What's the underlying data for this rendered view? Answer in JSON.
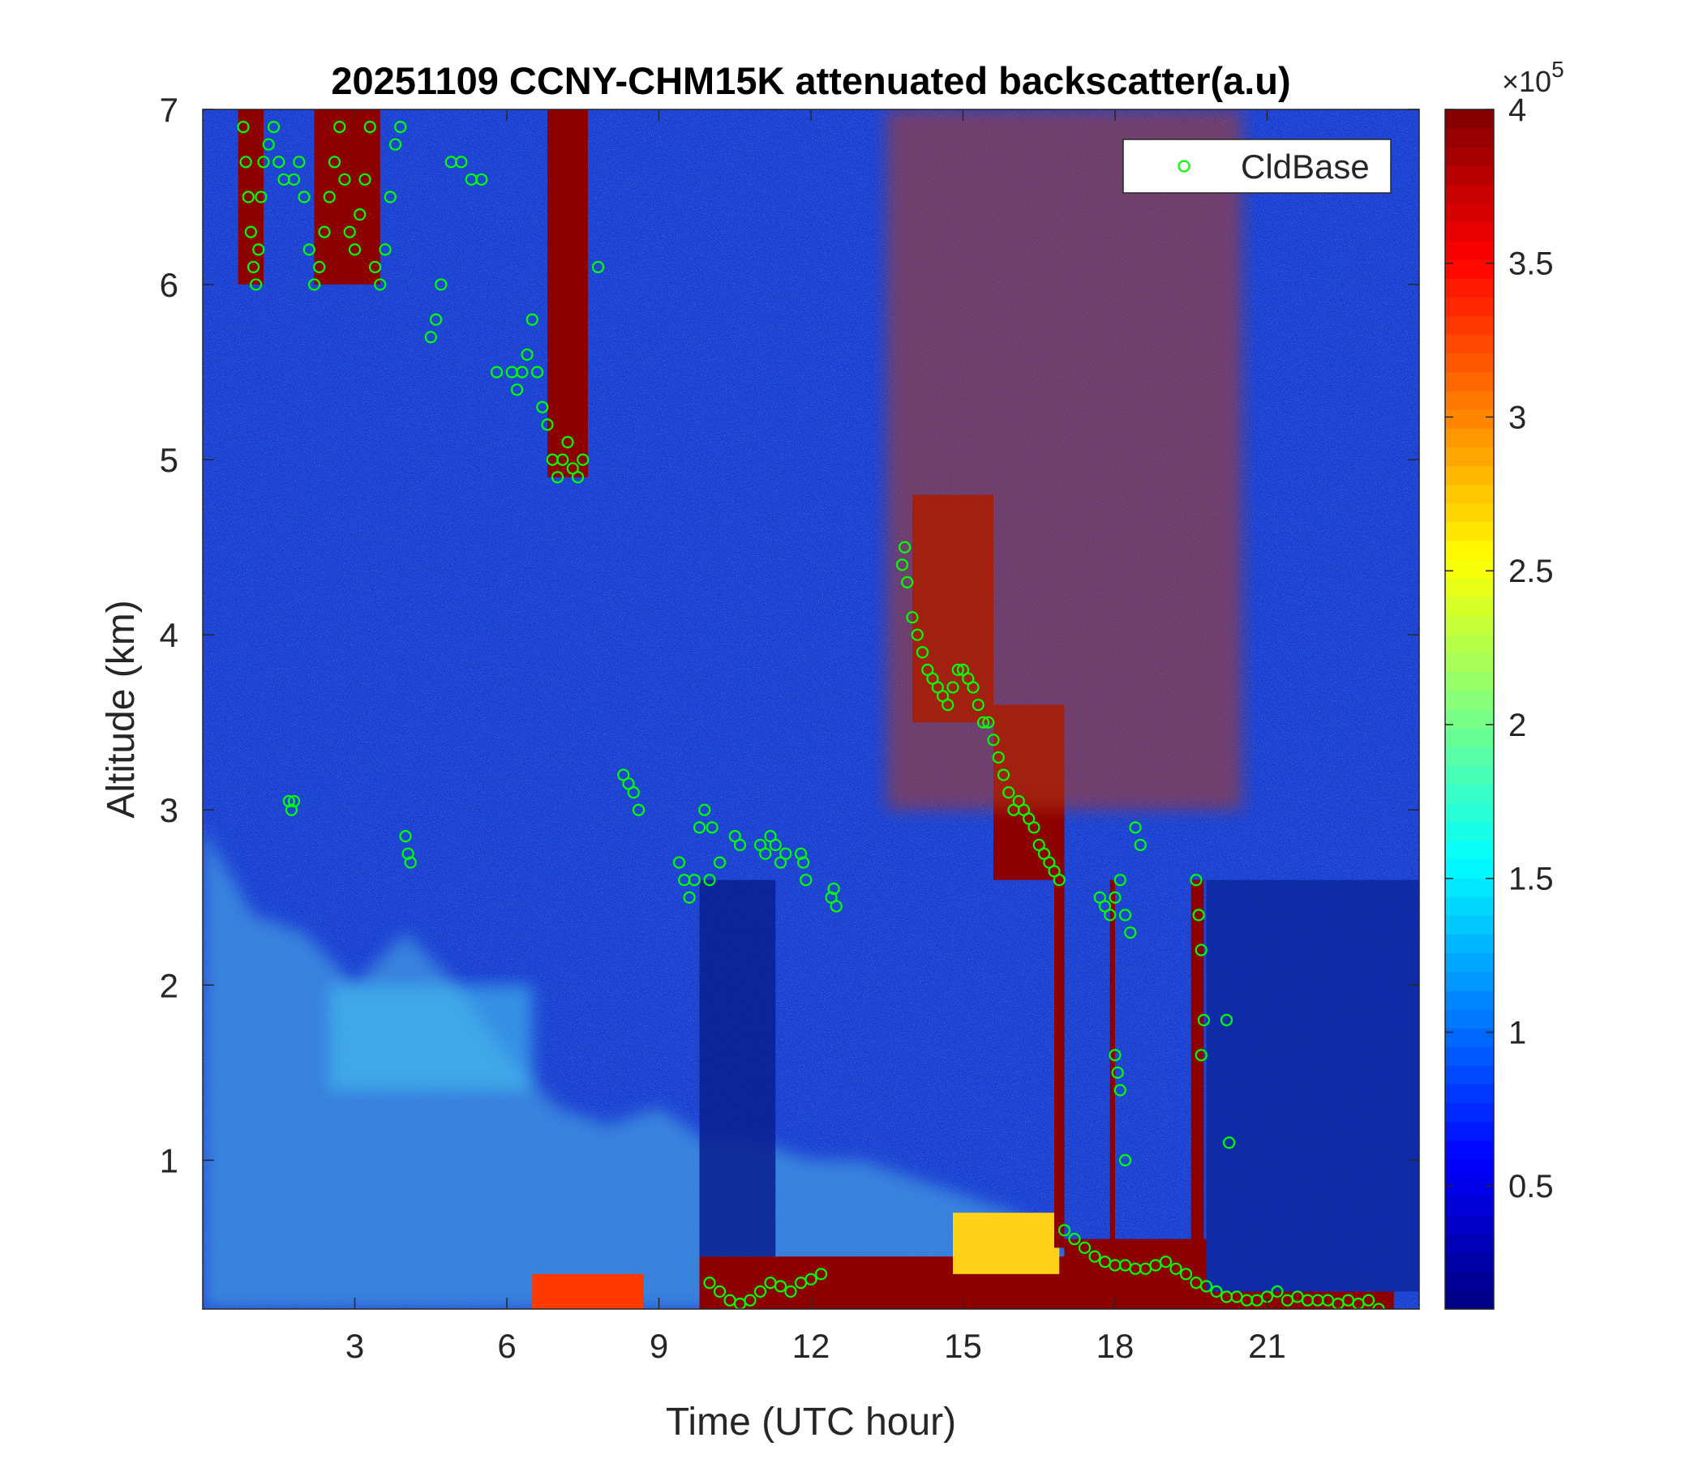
{
  "chart_data": {
    "type": "heatmap",
    "title": "20251109 CCNY-CHM15K attenuated backscatter(a.u)",
    "xlabel": "Time (UTC hour)",
    "ylabel": "Altitude (km)",
    "xlim": [
      0,
      24
    ],
    "ylim": [
      0.15,
      7
    ],
    "x_ticks": [
      3,
      6,
      9,
      12,
      15,
      18,
      21
    ],
    "y_ticks": [
      1,
      2,
      3,
      4,
      5,
      6,
      7
    ],
    "grid": false,
    "colormap": "jet",
    "colorbar": {
      "range": [
        0.1,
        4
      ],
      "ticks": [
        0.5,
        1,
        1.5,
        2,
        2.5,
        3,
        3.5,
        4
      ],
      "exponent_label": "×10",
      "exponent_power": "5"
    },
    "legend": {
      "position": "top-right",
      "entries": [
        "CldBase"
      ],
      "marker": "circle",
      "color": "#00ff00"
    },
    "features": [
      {
        "kind": "boundary_layer",
        "color": "#3d8de0",
        "top_km": [
          [
            0,
            2.9
          ],
          [
            1,
            2.4
          ],
          [
            2,
            2.3
          ],
          [
            3,
            2.0
          ],
          [
            4,
            2.3
          ],
          [
            5,
            2.0
          ],
          [
            6,
            1.6
          ],
          [
            7,
            1.3
          ],
          [
            8,
            1.2
          ],
          [
            9,
            1.3
          ],
          [
            10,
            1.1
          ],
          [
            11,
            1.1
          ],
          [
            12,
            1.0
          ],
          [
            13,
            1.0
          ],
          [
            14,
            0.9
          ],
          [
            15,
            0.8
          ],
          [
            16,
            0.7
          ],
          [
            17,
            0.5
          ],
          [
            17.2,
            0.0
          ]
        ]
      },
      {
        "kind": "aerosol_plume",
        "color": "#45c2f0",
        "t": [
          2.5,
          6.5
        ],
        "z": [
          1.4,
          2.0
        ]
      },
      {
        "kind": "surface_layer",
        "color": "#ff3a00",
        "t": [
          6.5,
          8.7
        ],
        "z": [
          0.15,
          0.35
        ]
      },
      {
        "kind": "surface_layer",
        "color": "#8c0000",
        "t": [
          9.8,
          17.0
        ],
        "z": [
          0.15,
          0.45
        ]
      },
      {
        "kind": "surface_layer",
        "color": "#ffd21a",
        "t": [
          14.8,
          16.9
        ],
        "z": [
          0.35,
          0.7
        ]
      },
      {
        "kind": "surface_layer",
        "color": "#8c0000",
        "t": [
          17.0,
          19.8
        ],
        "z": [
          0.15,
          0.55
        ]
      },
      {
        "kind": "surface_layer",
        "color": "#8c0000",
        "t": [
          19.8,
          23.5
        ],
        "z": [
          0.15,
          0.25
        ]
      },
      {
        "kind": "cloud",
        "color": "#8c0000",
        "t": [
          0.7,
          1.2
        ],
        "z": [
          6.0,
          7.0
        ]
      },
      {
        "kind": "cloud",
        "color": "#8c0000",
        "t": [
          2.2,
          3.5
        ],
        "z": [
          6.0,
          7.0
        ]
      },
      {
        "kind": "cloud",
        "color": "#8c0000",
        "t": [
          6.8,
          7.6
        ],
        "z": [
          4.9,
          7.8
        ]
      },
      {
        "kind": "cloud",
        "color": "#8c0000",
        "t": [
          14.0,
          15.6
        ],
        "z": [
          3.5,
          4.8
        ]
      },
      {
        "kind": "cloud",
        "color": "#8c0000",
        "t": [
          15.6,
          17.0
        ],
        "z": [
          2.6,
          3.6
        ]
      },
      {
        "kind": "cloud",
        "color": "#8c0000",
        "t": [
          16.8,
          17.0
        ],
        "z": [
          0.5,
          2.7
        ]
      },
      {
        "kind": "cloud",
        "color": "#8c0000",
        "t": [
          17.9,
          18.0
        ],
        "z": [
          0.5,
          2.6
        ]
      },
      {
        "kind": "cloud",
        "color": "#8c0000",
        "t": [
          19.5,
          19.75
        ],
        "z": [
          0.3,
          2.6
        ]
      },
      {
        "kind": "noisy_upper",
        "color": "#b33a1a",
        "t": [
          13.5,
          20.5
        ],
        "z": [
          3.0,
          7.0
        ]
      },
      {
        "kind": "clear_column",
        "color": "#0a1f8f",
        "t": [
          9.8,
          11.3
        ],
        "z": [
          0.45,
          2.6
        ]
      },
      {
        "kind": "clear_column",
        "color": "#0c27a0",
        "t": [
          19.8,
          24.0
        ],
        "z": [
          0.25,
          2.6
        ]
      }
    ],
    "series": [
      {
        "name": "CldBase",
        "type": "scatter",
        "x": [
          0.8,
          0.85,
          0.9,
          0.95,
          1.0,
          1.05,
          1.1,
          1.15,
          1.2,
          1.3,
          1.4,
          1.5,
          1.6,
          1.8,
          1.9,
          2.0,
          2.1,
          2.2,
          2.3,
          2.4,
          2.5,
          2.6,
          2.7,
          2.8,
          2.9,
          3.0,
          3.1,
          3.2,
          3.3,
          3.4,
          3.5,
          3.6,
          3.7,
          3.8,
          3.9,
          4.5,
          4.6,
          4.7,
          4.9,
          5.1,
          5.3,
          5.5,
          5.8,
          6.1,
          6.2,
          6.3,
          6.4,
          6.5,
          6.6,
          6.7,
          6.8,
          6.9,
          7.0,
          7.1,
          7.2,
          7.3,
          7.4,
          7.5,
          7.8,
          1.7,
          1.75,
          1.8,
          4.0,
          4.05,
          4.1,
          8.3,
          8.4,
          8.5,
          8.6,
          9.4,
          9.5,
          9.6,
          9.7,
          9.8,
          9.9,
          10.0,
          10.05,
          10.2,
          10.5,
          10.6,
          11.0,
          11.1,
          11.2,
          11.3,
          11.4,
          11.5,
          11.8,
          11.85,
          11.9,
          12.4,
          12.45,
          12.5,
          13.8,
          13.85,
          13.9,
          14.0,
          14.1,
          14.2,
          14.3,
          14.4,
          14.5,
          14.6,
          14.7,
          14.8,
          14.9,
          15.0,
          15.1,
          15.2,
          15.3,
          15.4,
          15.5,
          15.6,
          15.7,
          15.8,
          15.9,
          16.0,
          16.1,
          16.2,
          16.3,
          16.4,
          16.5,
          16.6,
          16.7,
          16.8,
          16.9,
          17.7,
          17.8,
          17.9,
          18.0,
          18.1,
          18.2,
          18.3,
          18.4,
          18.5,
          18.0,
          18.05,
          18.1,
          18.2,
          19.6,
          19.65,
          19.7,
          19.75,
          19.7,
          20.2,
          20.25,
          10.0,
          10.2,
          10.4,
          10.6,
          10.8,
          11.0,
          11.2,
          11.4,
          11.6,
          11.8,
          12.0,
          12.2,
          17.0,
          17.2,
          17.4,
          17.6,
          17.8,
          18.0,
          18.2,
          18.4,
          18.6,
          18.8,
          19.0,
          19.2,
          19.4,
          19.6,
          19.8,
          20.0,
          20.2,
          20.4,
          20.6,
          20.8,
          21.0,
          21.2,
          21.4,
          21.6,
          21.8,
          22.0,
          22.2,
          22.4,
          22.6,
          22.8,
          23.0,
          23.2
        ],
        "y": [
          6.9,
          6.7,
          6.5,
          6.3,
          6.1,
          6.0,
          6.2,
          6.5,
          6.7,
          6.8,
          6.9,
          6.7,
          6.6,
          6.6,
          6.7,
          6.5,
          6.2,
          6.0,
          6.1,
          6.3,
          6.5,
          6.7,
          6.9,
          6.6,
          6.3,
          6.2,
          6.4,
          6.6,
          6.9,
          6.1,
          6.0,
          6.2,
          6.5,
          6.8,
          6.9,
          5.7,
          5.8,
          6.0,
          6.7,
          6.7,
          6.6,
          6.6,
          5.5,
          5.5,
          5.4,
          5.5,
          5.6,
          5.8,
          5.5,
          5.3,
          5.2,
          5.0,
          4.9,
          5.0,
          5.1,
          4.95,
          4.9,
          5.0,
          6.1,
          3.05,
          3.0,
          3.05,
          2.85,
          2.75,
          2.7,
          3.2,
          3.15,
          3.1,
          3.0,
          2.7,
          2.6,
          2.5,
          2.6,
          2.9,
          3.0,
          2.6,
          2.9,
          2.7,
          2.85,
          2.8,
          2.8,
          2.75,
          2.85,
          2.8,
          2.7,
          2.75,
          2.75,
          2.7,
          2.6,
          2.5,
          2.55,
          2.45,
          4.4,
          4.5,
          4.3,
          4.1,
          4.0,
          3.9,
          3.8,
          3.75,
          3.7,
          3.65,
          3.6,
          3.7,
          3.8,
          3.8,
          3.75,
          3.7,
          3.6,
          3.5,
          3.5,
          3.4,
          3.3,
          3.2,
          3.1,
          3.0,
          3.05,
          3.0,
          2.95,
          2.9,
          2.8,
          2.75,
          2.7,
          2.65,
          2.6,
          2.5,
          2.45,
          2.4,
          2.5,
          2.6,
          2.4,
          2.3,
          2.9,
          2.8,
          1.6,
          1.5,
          1.4,
          1.0,
          2.6,
          2.4,
          2.2,
          1.8,
          1.6,
          1.8,
          1.1,
          0.3,
          0.25,
          0.2,
          0.18,
          0.2,
          0.25,
          0.3,
          0.28,
          0.25,
          0.3,
          0.32,
          0.35,
          0.6,
          0.55,
          0.5,
          0.45,
          0.42,
          0.4,
          0.4,
          0.38,
          0.38,
          0.4,
          0.42,
          0.38,
          0.35,
          0.3,
          0.28,
          0.25,
          0.22,
          0.22,
          0.2,
          0.2,
          0.22,
          0.25,
          0.2,
          0.22,
          0.2,
          0.2,
          0.2,
          0.18,
          0.2,
          0.18,
          0.2,
          0.15
        ]
      }
    ]
  }
}
